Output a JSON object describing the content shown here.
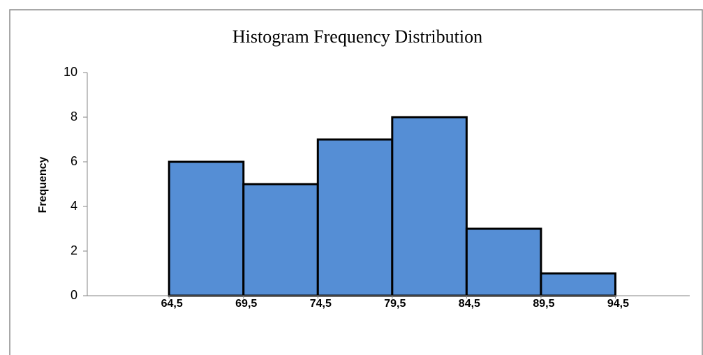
{
  "chart_data": {
    "type": "histogram",
    "title": "Histogram Frequency Distribution",
    "ylabel": "Frequency",
    "bins": [
      64.5,
      69.5,
      74.5,
      79.5,
      84.5,
      89.5,
      94.5
    ],
    "values": [
      6,
      5,
      7,
      8,
      3,
      1
    ],
    "color": "#558ed5",
    "xlim": [
      59,
      99.5
    ],
    "xticks": [
      {
        "value": 64.5,
        "label": "64,5"
      },
      {
        "value": 69.5,
        "label": "69,5"
      },
      {
        "value": 74.5,
        "label": "74,5"
      },
      {
        "value": 79.5,
        "label": "79,5"
      },
      {
        "value": 84.5,
        "label": "84,5"
      },
      {
        "value": 89.5,
        "label": "89,5"
      },
      {
        "value": 94.5,
        "label": "94,5"
      }
    ],
    "ylim": [
      0,
      10
    ],
    "yticks": [
      0,
      2,
      4,
      6,
      8,
      10
    ],
    "grid": false
  }
}
